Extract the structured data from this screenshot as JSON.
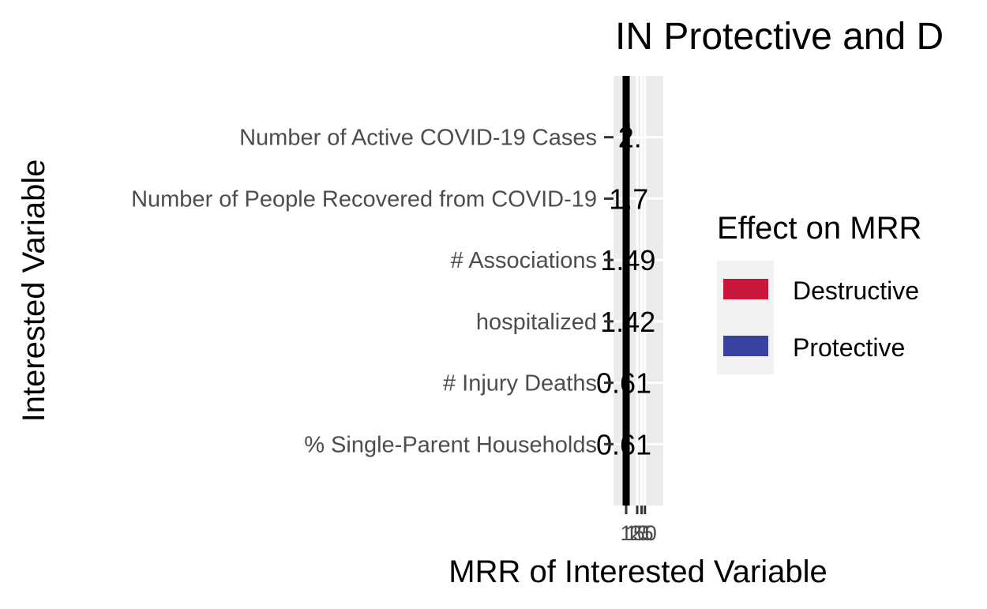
{
  "chart_data": {
    "type": "bar",
    "orientation": "horizontal",
    "title": "IN Protective and D",
    "xlabel": "MRR of Interested Variable",
    "ylabel": "Interested Variable",
    "x_scale": "log",
    "x_ticks": [
      "1",
      "10",
      "25",
      "50"
    ],
    "reference_line": 1,
    "grid": true,
    "legend": {
      "title": "Effect on MRR",
      "position": "right",
      "entries": [
        {
          "label": "Destructive",
          "color": "#c8173a"
        },
        {
          "label": "Protective",
          "color": "#3a42a0"
        }
      ]
    },
    "categories": [
      "Number of Active COVID-19 Cases",
      "Number of People Recovered from COVID-19",
      "# Associations",
      "hospitalized",
      "# Injury Deaths",
      "% Single-Parent Households"
    ],
    "values": [
      2.2,
      1.7,
      1.49,
      1.42,
      0.61,
      0.61
    ],
    "effects": [
      "Destructive",
      "Destructive",
      "Destructive",
      "Destructive",
      "Protective",
      "Protective"
    ],
    "value_labels": [
      "2.",
      "1.7",
      "1.49",
      "1.42",
      "0.61",
      "0.61"
    ]
  }
}
